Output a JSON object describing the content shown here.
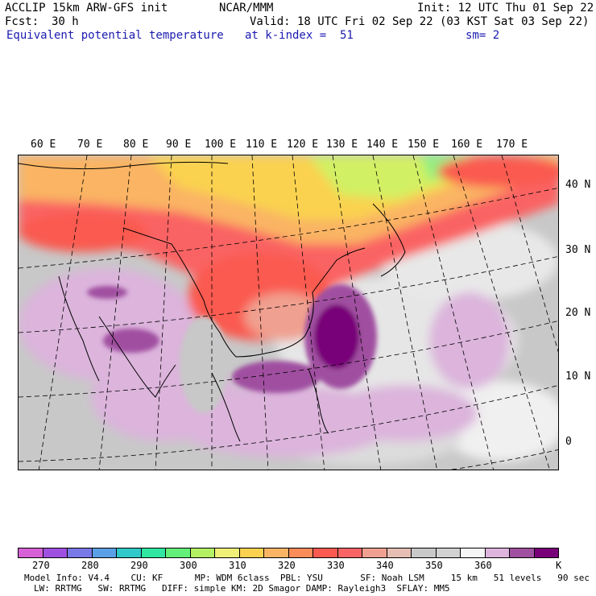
{
  "header": {
    "model": "ACCLIP 15km ARW-GFS init",
    "org": "NCAR/MMM",
    "init": "Init: 12 UTC Thu 01 Sep 22",
    "fcst_label": "Fcst:",
    "fcst_value": "30 h",
    "valid": "Valid: 18 UTC Fri 02 Sep 22 (03 KST Sat 03 Sep 22)",
    "field": "Equivalent potential temperature",
    "level": "at k-index =  51",
    "smoothing": "sm= 2"
  },
  "map": {
    "lon_labels": [
      "60 E",
      "70 E",
      "80 E",
      "90 E",
      "100 E",
      "110 E",
      "120 E",
      "130 E",
      "140 E",
      "150 E",
      "160 E",
      "170 E"
    ],
    "lat_labels": [
      "40 N",
      "30 N",
      "20 N",
      "10 N",
      "0"
    ]
  },
  "colorbar": {
    "colors": [
      "#d660d6",
      "#a050e0",
      "#7878e6",
      "#5aa0e6",
      "#30c8c8",
      "#30e6a0",
      "#64f078",
      "#b4f064",
      "#f0f078",
      "#fad250",
      "#fab464",
      "#fa8c5a",
      "#fa5a50",
      "#fa6464",
      "#f0a090",
      "#e6beb4",
      "#c8c8c8",
      "#d2d2d2",
      "#f5f5f5",
      "#dcb4dc",
      "#a050a0",
      "#780078"
    ],
    "ticks": [
      "270",
      "280",
      "290",
      "300",
      "310",
      "320",
      "330",
      "340",
      "350",
      "360"
    ],
    "unit": "K"
  },
  "footer": {
    "line1": "Model Info: V4.4    CU: KF      MP: WDM 6class  PBL: YSU       SF: Noah LSM     15 km   51 levels   90 sec",
    "line2": "LW: RRTMG   SW: RRTMG   DIFF: simple KM: 2D Smagor DAMP: Rayleigh3  SFLAY: MM5"
  }
}
